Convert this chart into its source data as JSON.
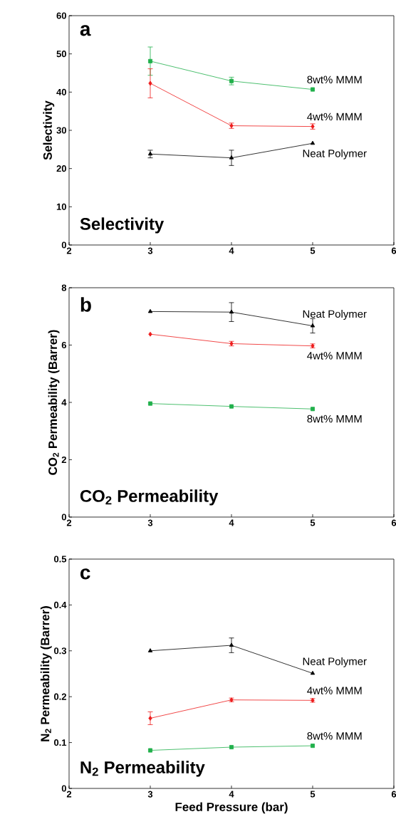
{
  "chart_data": [
    {
      "type": "line",
      "ylabel": "Selectivity",
      "annotations": [
        "a",
        "Selectivity"
      ],
      "x": [
        3,
        4,
        5
      ],
      "xlim": [
        2,
        6
      ],
      "xticks": [
        2,
        3,
        4,
        5,
        6
      ],
      "ylim": [
        0,
        60
      ],
      "yticks": [
        0,
        10,
        20,
        30,
        40,
        50,
        60
      ],
      "series": [
        {
          "name": "8wt% MMM",
          "color": "#21b04b",
          "marker": "square",
          "values": [
            48.1,
            42.9,
            40.7
          ],
          "errors": [
            3.7,
            1.0,
            null
          ]
        },
        {
          "name": "4wt% MMM",
          "color": "#ee1c1c",
          "marker": "diamond",
          "values": [
            42.3,
            31.2,
            31.0
          ],
          "errors": [
            3.8,
            0.7,
            0.7
          ]
        },
        {
          "name": "Neat Polymer",
          "color": "#000000",
          "marker": "triangle",
          "values": [
            23.8,
            22.8,
            26.6
          ],
          "errors": [
            1.0,
            2.0,
            null
          ]
        }
      ]
    },
    {
      "type": "line",
      "ylabel": "CO$_{2}$ Permeability (Barrer)",
      "annotations": [
        "b",
        "CO$_{2}$ Permeability"
      ],
      "x": [
        3,
        4,
        5
      ],
      "xlim": [
        2,
        6
      ],
      "xticks": [
        2,
        3,
        4,
        5,
        6
      ],
      "ylim": [
        0,
        8
      ],
      "yticks": [
        0,
        2,
        4,
        6,
        8
      ],
      "series": [
        {
          "name": "Neat Polymer",
          "color": "#000000",
          "marker": "triangle",
          "values": [
            7.17,
            7.15,
            6.67
          ],
          "errors": [
            null,
            0.33,
            0.25
          ]
        },
        {
          "name": "4wt% MMM",
          "color": "#ee1c1c",
          "marker": "diamond",
          "values": [
            6.38,
            6.05,
            5.97
          ],
          "errors": [
            null,
            0.08,
            0.07
          ]
        },
        {
          "name": "8wt% MMM",
          "color": "#21b04b",
          "marker": "square",
          "values": [
            3.96,
            3.86,
            3.77
          ]
        }
      ]
    },
    {
      "type": "line",
      "xlabel": "Feed Pressure (bar)",
      "ylabel": "N$_{2}$ Permeability (Barrer)",
      "annotations": [
        "c",
        "N$_{2}$ Permeability"
      ],
      "x": [
        3,
        4,
        5
      ],
      "xlim": [
        2,
        6
      ],
      "xticks": [
        2,
        3,
        4,
        5,
        6
      ],
      "ylim": [
        0,
        0.5
      ],
      "yticks": [
        0,
        0.1,
        0.2,
        0.3,
        0.4,
        0.5
      ],
      "series": [
        {
          "name": "Neat Polymer",
          "color": "#000000",
          "marker": "triangle",
          "values": [
            0.3,
            0.312,
            0.251
          ],
          "errors": [
            null,
            0.016,
            null
          ]
        },
        {
          "name": "4wt% MMM",
          "color": "#ee1c1c",
          "marker": "diamond",
          "values": [
            0.153,
            0.193,
            0.192
          ],
          "errors": [
            0.014,
            0.004,
            0.004
          ]
        },
        {
          "name": "8wt% MMM",
          "color": "#21b04b",
          "marker": "square",
          "values": [
            0.083,
            0.09,
            0.093
          ]
        }
      ]
    }
  ]
}
